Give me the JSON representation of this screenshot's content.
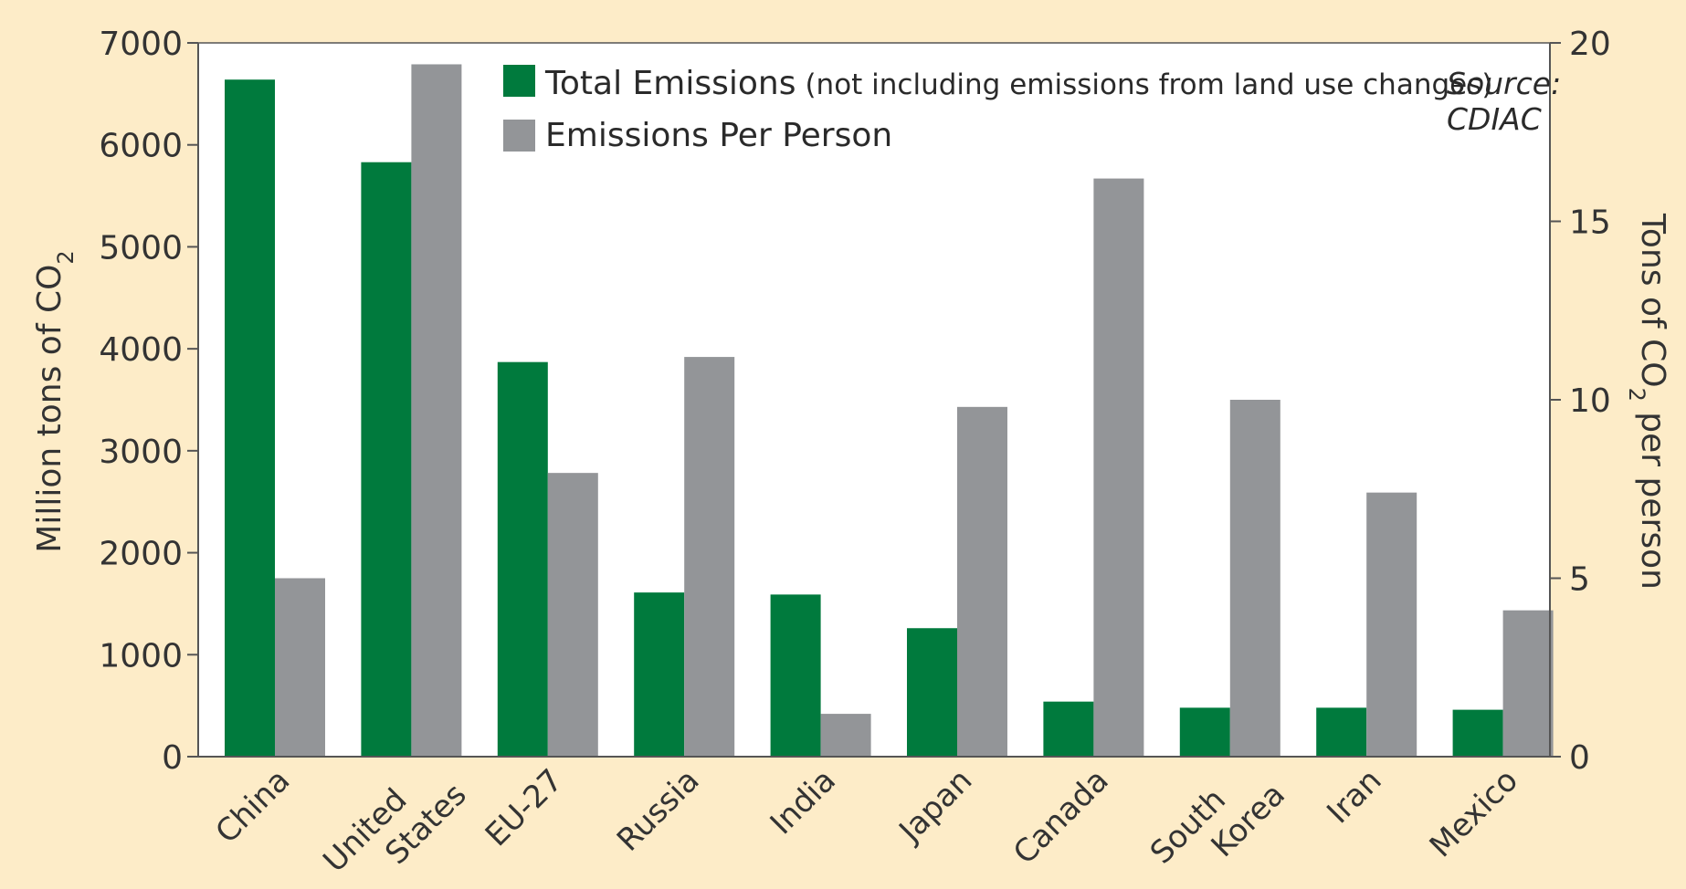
{
  "chart_data": {
    "type": "bar",
    "categories": [
      [
        "China"
      ],
      [
        "United",
        "States"
      ],
      [
        "EU-27"
      ],
      [
        "Russia"
      ],
      [
        "India"
      ],
      [
        "Japan"
      ],
      [
        "Canada"
      ],
      [
        "South",
        "Korea"
      ],
      [
        "Iran"
      ],
      [
        "Mexico"
      ]
    ],
    "series": [
      {
        "name": "Total Emissions",
        "name_note": "(not including emissions from land use changes)",
        "axis": "left",
        "color": "#007a3d",
        "values": [
          6640,
          5830,
          3870,
          1610,
          1590,
          1260,
          540,
          480,
          480,
          460
        ]
      },
      {
        "name": "Emissions Per Person",
        "axis": "right",
        "color": "#939598",
        "values": [
          5.0,
          19.4,
          7.95,
          11.2,
          1.2,
          9.8,
          16.2,
          10.0,
          7.4,
          4.1
        ]
      }
    ],
    "y_left": {
      "label_main": "Million tons of CO",
      "label_sub": "2",
      "ticks": [
        "0",
        "1000",
        "2000",
        "3000",
        "4000",
        "5000",
        "6000",
        "7000"
      ],
      "lim": [
        0,
        7000
      ]
    },
    "y_right": {
      "label_pre": "Tons of CO",
      "label_sub": "2",
      "label_post": " per person",
      "ticks": [
        "0",
        "5",
        "10",
        "15",
        "20"
      ],
      "lim": [
        0,
        20
      ]
    },
    "source": [
      "Source:",
      "CDIAC"
    ],
    "legend_position": "top",
    "grid": false
  },
  "colors": {
    "frame_background": "#fdecc8",
    "plot_background": "#ffffff",
    "axis": "#555555"
  }
}
